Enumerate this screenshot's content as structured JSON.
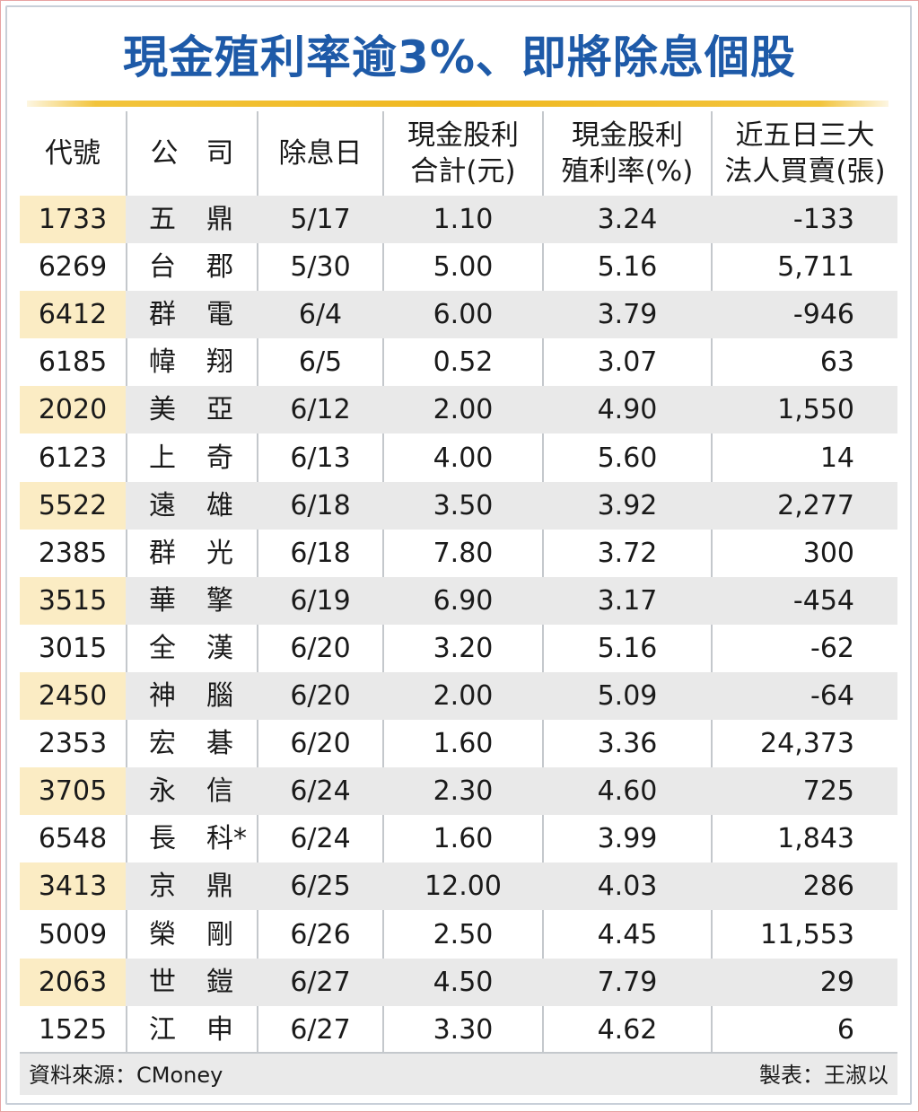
{
  "title": "現金殖利率逾3%、即將除息個股",
  "chart_data": {
    "type": "table",
    "columns": [
      "代號",
      "公　司",
      "除息日",
      "現金股利合計(元)",
      "現金股利殖利率(%)",
      "近五日三大法人買賣(張)"
    ],
    "header_lines": [
      [
        "代號"
      ],
      [
        "公　司"
      ],
      [
        "除息日"
      ],
      [
        "現金股利",
        "合計(元)"
      ],
      [
        "現金股利",
        "殖利率(%)"
      ],
      [
        "近五日三大",
        "法人買賣(張)"
      ]
    ],
    "rows": [
      {
        "code": "1733",
        "name": [
          "五",
          "鼎"
        ],
        "date": "5/17",
        "dividend": "1.10",
        "yield": "3.24",
        "net": "-133"
      },
      {
        "code": "6269",
        "name": [
          "台",
          "郡"
        ],
        "date": "5/30",
        "dividend": "5.00",
        "yield": "5.16",
        "net": "5,711"
      },
      {
        "code": "6412",
        "name": [
          "群",
          "電"
        ],
        "date": "6/4",
        "dividend": "6.00",
        "yield": "3.79",
        "net": "-946"
      },
      {
        "code": "6185",
        "name": [
          "幃",
          "翔"
        ],
        "date": "6/5",
        "dividend": "0.52",
        "yield": "3.07",
        "net": "63"
      },
      {
        "code": "2020",
        "name": [
          "美",
          "亞"
        ],
        "date": "6/12",
        "dividend": "2.00",
        "yield": "4.90",
        "net": "1,550"
      },
      {
        "code": "6123",
        "name": [
          "上",
          "奇"
        ],
        "date": "6/13",
        "dividend": "4.00",
        "yield": "5.60",
        "net": "14"
      },
      {
        "code": "5522",
        "name": [
          "遠",
          "雄"
        ],
        "date": "6/18",
        "dividend": "3.50",
        "yield": "3.92",
        "net": "2,277"
      },
      {
        "code": "2385",
        "name": [
          "群",
          "光"
        ],
        "date": "6/18",
        "dividend": "7.80",
        "yield": "3.72",
        "net": "300"
      },
      {
        "code": "3515",
        "name": [
          "華",
          "擎"
        ],
        "date": "6/19",
        "dividend": "6.90",
        "yield": "3.17",
        "net": "-454"
      },
      {
        "code": "3015",
        "name": [
          "全",
          "漢"
        ],
        "date": "6/20",
        "dividend": "3.20",
        "yield": "5.16",
        "net": "-62"
      },
      {
        "code": "2450",
        "name": [
          "神",
          "腦"
        ],
        "date": "6/20",
        "dividend": "2.00",
        "yield": "5.09",
        "net": "-64"
      },
      {
        "code": "2353",
        "name": [
          "宏",
          "碁"
        ],
        "date": "6/20",
        "dividend": "1.60",
        "yield": "3.36",
        "net": "24,373"
      },
      {
        "code": "3705",
        "name": [
          "永",
          "信"
        ],
        "date": "6/24",
        "dividend": "2.30",
        "yield": "4.60",
        "net": "725"
      },
      {
        "code": "6548",
        "name": [
          "長",
          "科*"
        ],
        "date": "6/24",
        "dividend": "1.60",
        "yield": "3.99",
        "net": "1,843"
      },
      {
        "code": "3413",
        "name": [
          "京",
          "鼎"
        ],
        "date": "6/25",
        "dividend": "12.00",
        "yield": "4.03",
        "net": "286"
      },
      {
        "code": "5009",
        "name": [
          "榮",
          "剛"
        ],
        "date": "6/26",
        "dividend": "2.50",
        "yield": "4.45",
        "net": "11,553"
      },
      {
        "code": "2063",
        "name": [
          "世",
          "鎧"
        ],
        "date": "6/27",
        "dividend": "4.50",
        "yield": "7.79",
        "net": "29"
      },
      {
        "code": "1525",
        "name": [
          "江",
          "申"
        ],
        "date": "6/27",
        "dividend": "3.30",
        "yield": "4.62",
        "net": "6"
      }
    ]
  },
  "footer": {
    "source": "資料來源：CMoney",
    "maker": "製表：王淑以"
  },
  "colors": {
    "title": "#1e5aa8",
    "gold_rule": "#f0b820",
    "stripe": "#e9e9e9",
    "code_stripe": "#fbecc4",
    "divider": "#c4c8cc"
  }
}
